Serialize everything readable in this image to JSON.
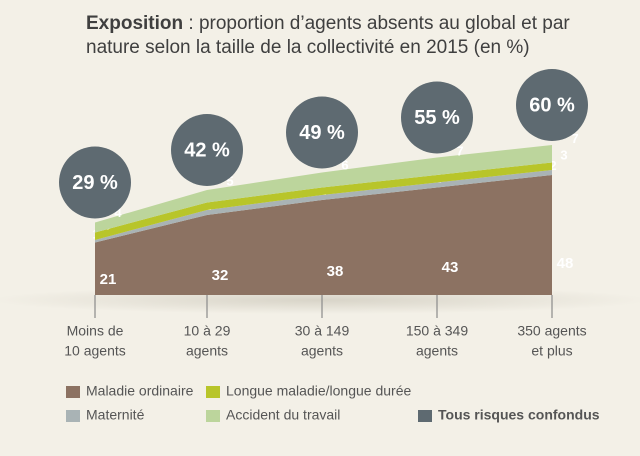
{
  "chart_data": {
    "type": "stacked-area",
    "title_emphasis": "Exposition",
    "title": ": proportion d’agents absents au global et par nature selon la taille de la collectivité en 2015 (en %)",
    "categories": [
      [
        "Moins de",
        "10 agents"
      ],
      [
        "10 à 29",
        "agents"
      ],
      [
        "30 à 149",
        "agents"
      ],
      [
        "150 à 349",
        "agents"
      ],
      [
        "350 agents",
        "et plus"
      ]
    ],
    "series": [
      {
        "name": "Maladie ordinaire",
        "color": "#8c7262",
        "values": [
          21,
          32,
          38,
          43,
          48
        ]
      },
      {
        "name": "Maternité",
        "color": "#a9b3b5",
        "values": [
          1,
          2,
          2,
          2,
          2
        ]
      },
      {
        "name": "Longue maladie/longue durée",
        "color": "#b8c52a",
        "values": [
          3,
          3,
          3,
          3,
          3
        ]
      },
      {
        "name": "Accident du travail",
        "color": "#bcd59c",
        "values": [
          4,
          5,
          6,
          7,
          7
        ]
      }
    ],
    "total": {
      "name": "Tous risques confondus",
      "color": "#5e6a71",
      "values": [
        29,
        42,
        49,
        55,
        60
      ],
      "value_labels": [
        "29 %",
        "42 %",
        "49 %",
        "55 %",
        "60 %"
      ]
    }
  }
}
